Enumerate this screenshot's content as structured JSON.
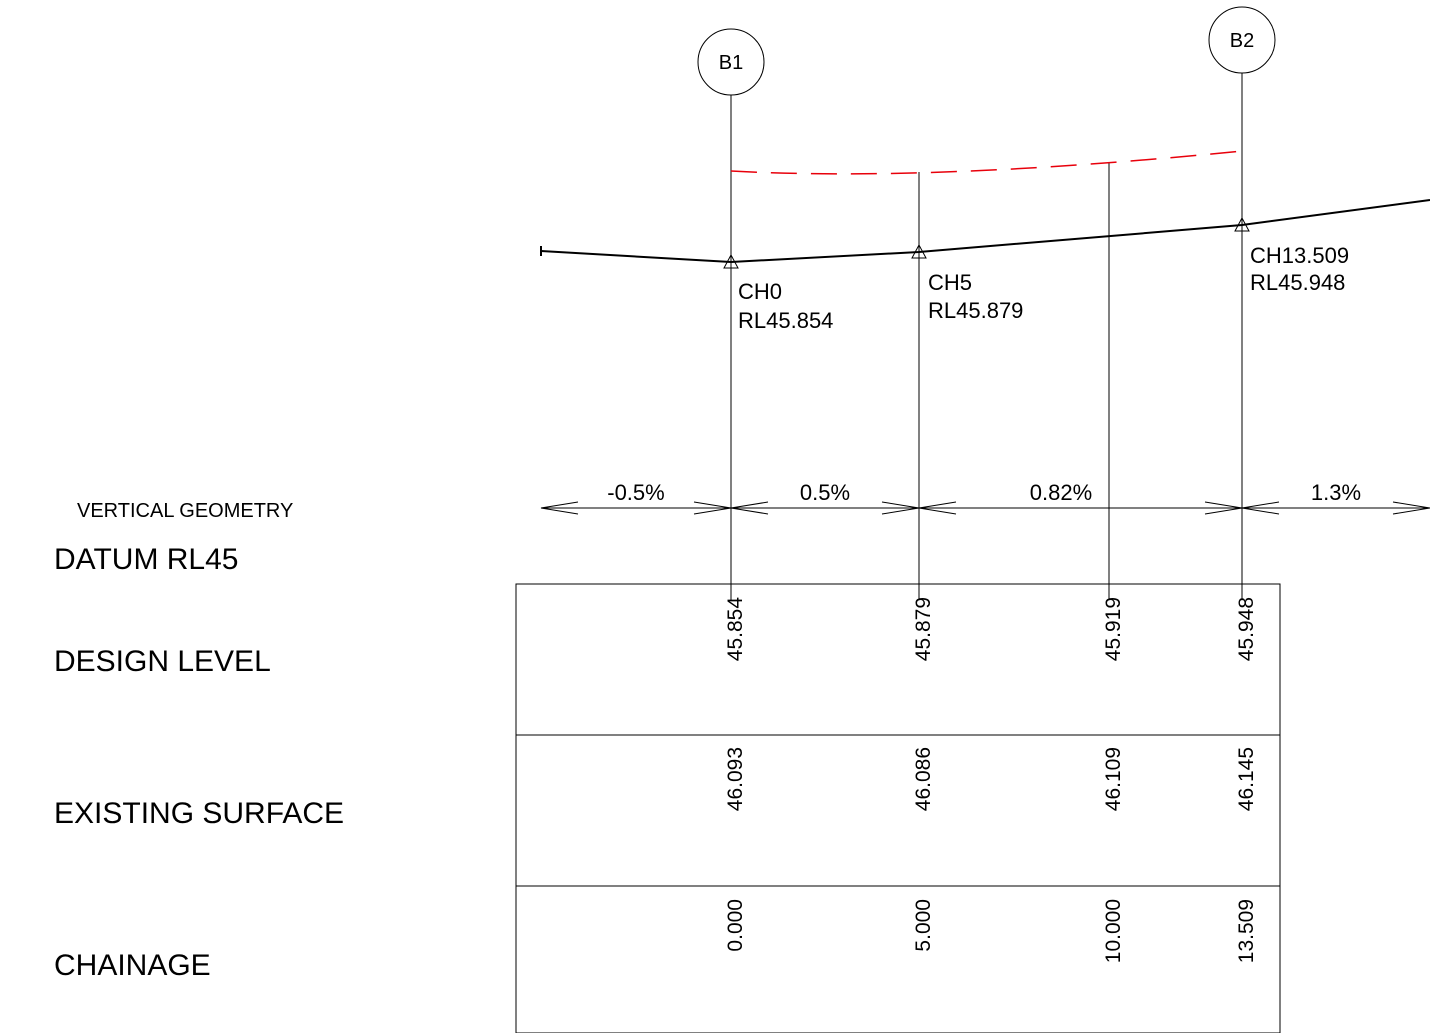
{
  "title": "VERTICAL GEOMETRY",
  "datum": "DATUM RL45",
  "row_labels": {
    "design_level": "DESIGN LEVEL",
    "existing_surface": "EXISTING SURFACE",
    "chainage": "CHAINAGE"
  },
  "bubbles": [
    {
      "id": "b1",
      "label": "B1"
    },
    {
      "id": "b2",
      "label": "B2"
    }
  ],
  "points": [
    {
      "ch": "CH0",
      "rl": "RL45.854"
    },
    {
      "ch": "CH5",
      "rl": "RL45.879"
    },
    {
      "ch": "CH13.509",
      "rl": "RL45.948"
    }
  ],
  "grades": [
    "-0.5%",
    "0.5%",
    "0.82%",
    "1.3%"
  ],
  "table": {
    "design_level": [
      "45.854",
      "45.879",
      "45.919",
      "45.948"
    ],
    "existing_surface": [
      "46.093",
      "46.086",
      "46.109",
      "46.145"
    ],
    "chainage": [
      "0.000",
      "5.000",
      "10.000",
      "13.509"
    ]
  },
  "colors": {
    "line": "#000000",
    "existing_surface_dashed": "#e8000b",
    "background": "#ffffff"
  }
}
